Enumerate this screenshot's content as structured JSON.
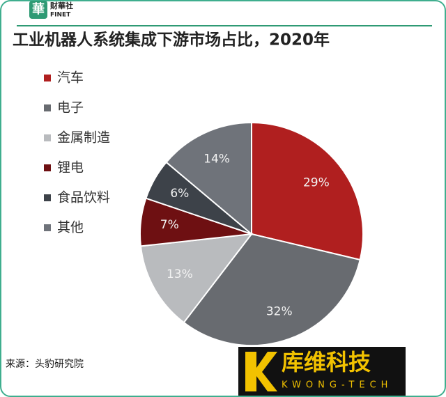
{
  "chart_data": {
    "type": "pie",
    "title": "工业机器人系统集成下游市场占比，2020年",
    "categories": [
      "汽车",
      "电子",
      "金属制造",
      "锂电",
      "食品饮料",
      "其他"
    ],
    "values": [
      29,
      32,
      13,
      7,
      6,
      14
    ],
    "value_labels": [
      "29%",
      "32%",
      "13%",
      "7%",
      "6%",
      "14%"
    ],
    "colors": [
      "#b01f1f",
      "#686b70",
      "#b9bbbe",
      "#6e1012",
      "#3d4249",
      "#6f737a"
    ],
    "legend": "top-left",
    "source": "来源：头豹研究院"
  },
  "logo": {
    "mark": "華",
    "name": "财華社",
    "sub": "FINET"
  },
  "brand": {
    "name": "库维科技",
    "sub": "KWONG-TECH"
  }
}
